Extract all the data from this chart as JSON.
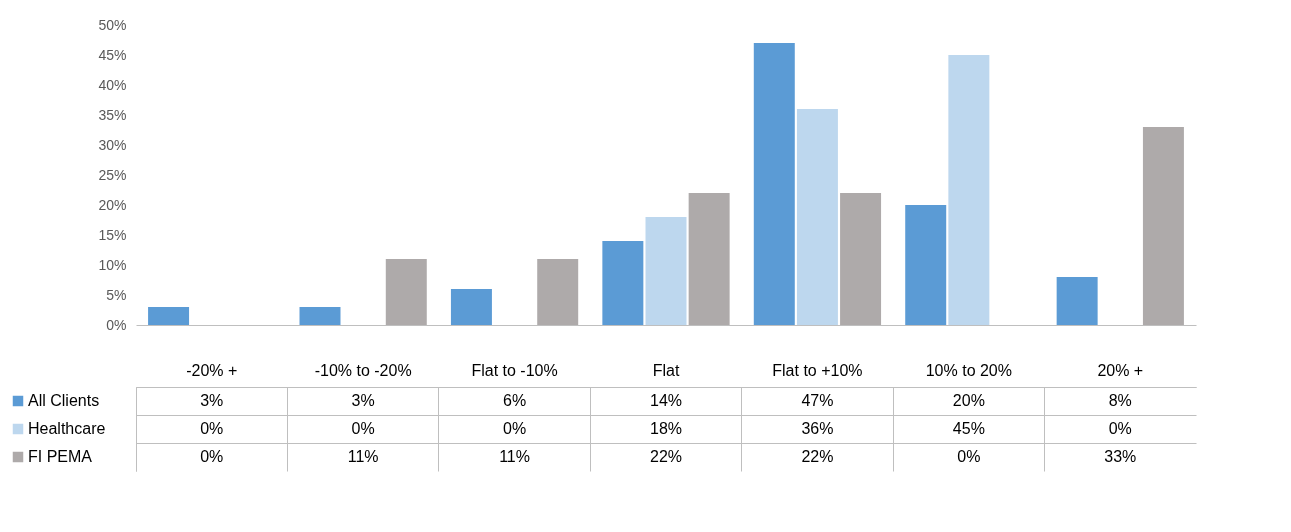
{
  "chart_data": {
    "type": "bar",
    "categories": [
      "-20% +",
      "-10% to -20%",
      "Flat to -10%",
      "Flat",
      "Flat to +10%",
      "10% to 20%",
      "20% +"
    ],
    "ylim": [
      0,
      50
    ],
    "yticks": [
      {
        "value": 0,
        "label": "0%"
      },
      {
        "value": 5,
        "label": "5%"
      },
      {
        "value": 10,
        "label": "10%"
      },
      {
        "value": 15,
        "label": "15%"
      },
      {
        "value": 20,
        "label": "20%"
      },
      {
        "value": 25,
        "label": "25%"
      },
      {
        "value": 30,
        "label": "30%"
      },
      {
        "value": 35,
        "label": "35%"
      },
      {
        "value": 40,
        "label": "40%"
      },
      {
        "value": 45,
        "label": "45%"
      },
      {
        "value": 50,
        "label": "50%"
      }
    ],
    "legend": "bottom left",
    "series": [
      {
        "name": "All Clients",
        "color": "#5b9bd5",
        "values": [
          3,
          3,
          6,
          14,
          47,
          20,
          8
        ],
        "value_labels": [
          "3%",
          "3%",
          "6%",
          "14%",
          "47%",
          "20%",
          "8%"
        ]
      },
      {
        "name": "Healthcare",
        "color": "#bdd7ee",
        "values": [
          0,
          0,
          0,
          18,
          36,
          45,
          0
        ],
        "value_labels": [
          "0%",
          "0%",
          "0%",
          "18%",
          "36%",
          "45%",
          "0%"
        ]
      },
      {
        "name": "FI PEMA",
        "color": "#aeaaaa",
        "values": [
          0,
          11,
          11,
          22,
          22,
          0,
          33
        ],
        "value_labels": [
          "0%",
          "11%",
          "11%",
          "22%",
          "22%",
          "0%",
          "33%"
        ]
      }
    ]
  }
}
